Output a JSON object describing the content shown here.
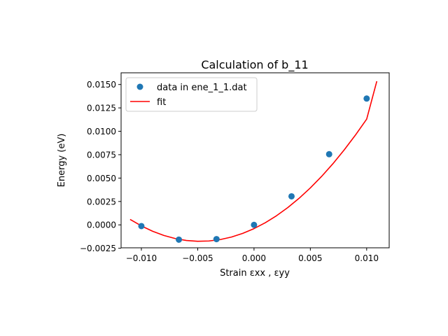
{
  "chart_data": {
    "type": "scatter",
    "title": "Calculation of b_11",
    "xlabel": "Strain εxx , εyy",
    "ylabel": "Energy (eV)",
    "xlim": [
      -0.0118,
      0.012
    ],
    "ylim": [
      -0.00245,
      0.01625
    ],
    "x_ticks": [
      -0.01,
      -0.005,
      0.0,
      0.005,
      0.01
    ],
    "x_tick_labels": [
      "−0.010",
      "−0.005",
      "0.000",
      "0.005",
      "0.010"
    ],
    "y_ticks": [
      -0.0025,
      0.0,
      0.0025,
      0.005,
      0.0075,
      0.01,
      0.0125,
      0.015
    ],
    "y_tick_labels": [
      "−0.0025",
      "0.0000",
      "0.0025",
      "0.0050",
      "0.0075",
      "0.0100",
      "0.0125",
      "0.0150"
    ],
    "grid": false,
    "legend_position": "top-left",
    "series": [
      {
        "name": "data in ene_1_1.dat",
        "kind": "markers",
        "color": "#1f77b4",
        "x": [
          -0.01,
          -0.00667,
          -0.00333,
          0.0,
          0.00333,
          0.00667,
          0.01
        ],
        "y": [
          -0.00013,
          -0.00158,
          -0.00152,
          0.0,
          0.00305,
          0.00755,
          0.0135
        ]
      },
      {
        "name": "fit",
        "kind": "line",
        "color": "#ff0000",
        "x": [
          -0.011,
          -0.01,
          -0.009,
          -0.008,
          -0.007,
          -0.006,
          -0.005,
          -0.004,
          -0.003,
          -0.002,
          -0.001,
          0.0,
          0.001,
          0.002,
          0.003,
          0.004,
          0.005,
          0.006,
          0.007,
          0.008,
          0.009,
          0.01,
          0.0109
        ],
        "y": [
          0.00058,
          -0.00011,
          -0.00068,
          -0.00113,
          -0.00146,
          -0.00167,
          -0.00175,
          -0.00172,
          -0.00157,
          -0.0013,
          -0.00091,
          -0.0004,
          0.00023,
          0.00098,
          0.00185,
          0.00284,
          0.00395,
          0.00518,
          0.00653,
          0.008,
          0.00959,
          0.0113,
          0.01535
        ]
      }
    ]
  }
}
